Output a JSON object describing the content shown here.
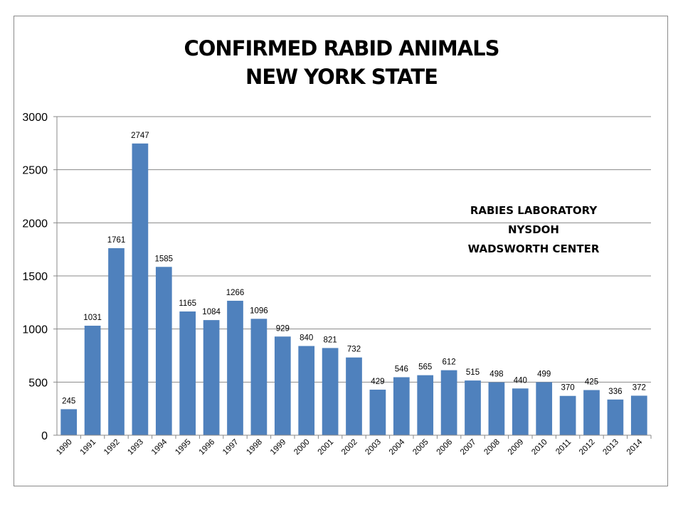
{
  "title_lines": [
    "CONFIRMED RABID ANIMALS",
    "NEW YORK STATE"
  ],
  "annotation_lines": [
    "RABIES LABORATORY",
    "NYSDOH",
    "WADSWORTH  CENTER"
  ],
  "colors": {
    "bar": "#4f81bd",
    "grid": "#888888",
    "axis": "#888888"
  },
  "chart_data": {
    "type": "bar",
    "title": "CONFIRMED RABID ANIMALS NEW YORK STATE",
    "xlabel": "",
    "ylabel": "",
    "ylim": [
      0,
      3000
    ],
    "yticks": [
      "0",
      "500",
      "1000",
      "1500",
      "2000",
      "2500",
      "3000"
    ],
    "grid": true,
    "categories": [
      "1990",
      "1991",
      "1992",
      "1993",
      "1994",
      "1995",
      "1996",
      "1997",
      "1998",
      "1999",
      "2000",
      "2001",
      "2002",
      "2003",
      "2004",
      "2005",
      "2006",
      "2007",
      "2008",
      "2009",
      "2010",
      "2011",
      "2012",
      "2013",
      "2014"
    ],
    "values": [
      245,
      1031,
      1761,
      2747,
      1585,
      1165,
      1084,
      1266,
      1096,
      929,
      840,
      821,
      732,
      429,
      546,
      565,
      612,
      515,
      498,
      440,
      499,
      370,
      425,
      336,
      372
    ],
    "data_labels": [
      "245",
      "1031",
      "1761",
      "2747",
      "1585",
      "1165",
      "1084",
      "1266",
      "1096",
      "929",
      "840",
      "821",
      "732",
      "429",
      "546",
      "565",
      "612",
      "515",
      "498",
      "440",
      "499",
      "370",
      "425",
      "336",
      "372"
    ]
  }
}
